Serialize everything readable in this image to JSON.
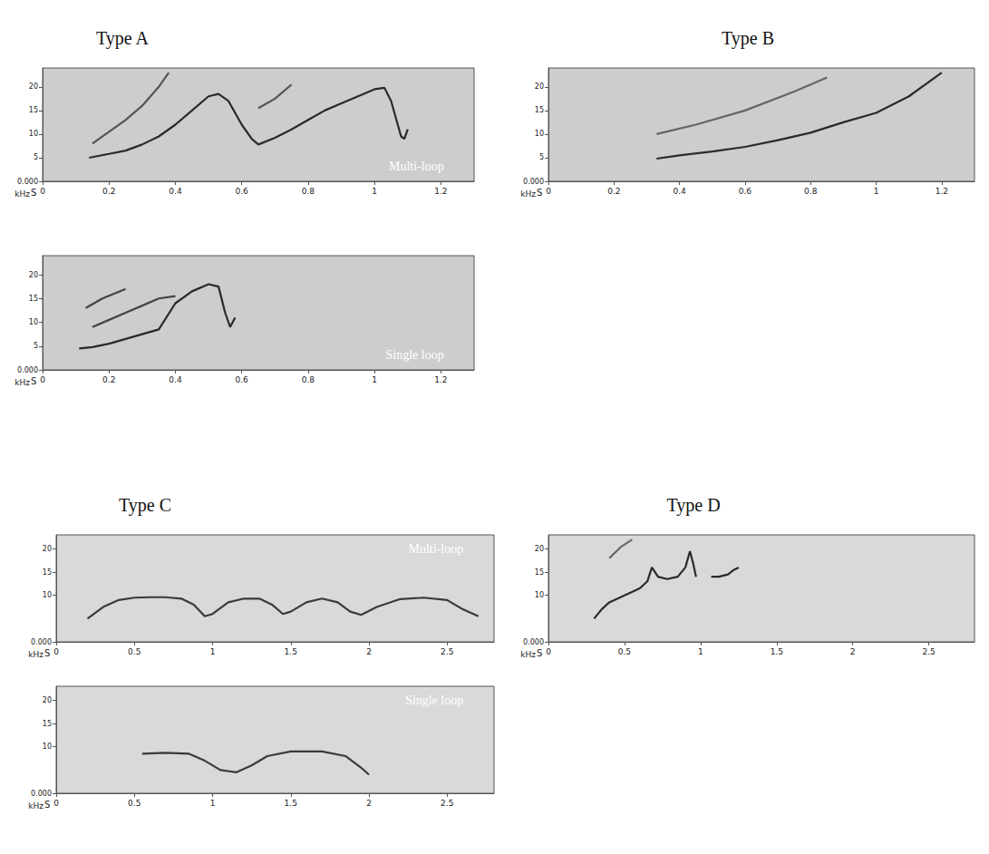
{
  "chart_data": [
    {
      "type": "line",
      "title": "Type A",
      "annotation": "Multi-loop",
      "xlabel": "S",
      "ylabel": "kHz",
      "xlim": [
        0,
        1.3
      ],
      "ylim": [
        0,
        24
      ],
      "xticks": [
        0,
        0.2,
        0.4,
        0.6,
        0.8,
        1,
        1.2
      ],
      "yticks": [
        {
          "value": 0,
          "label": "0.000"
        },
        5,
        10,
        15,
        20
      ],
      "grid": false,
      "series": [
        {
          "color": "#2a2a2a",
          "x": [
            0.14,
            0.2,
            0.25,
            0.3,
            0.35,
            0.4,
            0.45,
            0.5,
            0.53,
            0.56,
            0.6,
            0.63,
            0.65,
            0.7,
            0.75,
            0.8,
            0.85,
            0.9,
            0.95,
            1.0,
            1.03,
            1.05,
            1.07,
            1.08,
            1.09,
            1.1
          ],
          "values": [
            5,
            5.8,
            6.5,
            7.8,
            9.5,
            12,
            15,
            18,
            18.5,
            17,
            12,
            9,
            7.8,
            9.2,
            11,
            13,
            15,
            16.5,
            18,
            19.5,
            19.8,
            17,
            12,
            9.5,
            9,
            11
          ]
        },
        {
          "color": "#555555",
          "x": [
            0.15,
            0.2,
            0.25,
            0.3,
            0.35,
            0.38,
            0.5,
            0.65,
            0.7,
            0.75
          ],
          "values": [
            8,
            10.5,
            13,
            16,
            20,
            23,
            null,
            15.5,
            17.5,
            20.5
          ]
        }
      ]
    },
    {
      "type": "line",
      "annotation": "Single loop",
      "xlabel": "S",
      "ylabel": "kHz",
      "xlim": [
        0,
        1.3
      ],
      "ylim": [
        0,
        24
      ],
      "xticks": [
        0,
        0.2,
        0.4,
        0.6,
        0.8,
        1,
        1.2
      ],
      "yticks": [
        {
          "value": 0,
          "label": "0.000"
        },
        5,
        10,
        15,
        20
      ],
      "grid": false,
      "series": [
        {
          "color": "#2a2a2a",
          "x": [
            0.11,
            0.15,
            0.2,
            0.25,
            0.3,
            0.35,
            0.4,
            0.45,
            0.5,
            0.53,
            0.55,
            0.565,
            0.58
          ],
          "values": [
            4.5,
            4.8,
            5.5,
            6.5,
            7.5,
            8.5,
            14,
            16.5,
            18,
            17.5,
            12,
            9,
            11
          ]
        },
        {
          "color": "#444444",
          "x": [
            0.15,
            0.2,
            0.25,
            0.3,
            0.35,
            0.4,
            0.42,
            0.13,
            0.18,
            0.25
          ],
          "values": [
            9,
            10.5,
            12,
            13.5,
            15,
            15.5,
            null,
            13,
            15,
            17
          ]
        }
      ]
    },
    {
      "type": "line",
      "title": "Type B",
      "xlabel": "S",
      "ylabel": "kHz",
      "xlim": [
        0,
        1.3
      ],
      "ylim": [
        0,
        24
      ],
      "xticks": [
        0,
        0.2,
        0.4,
        0.6,
        0.8,
        1,
        1.2
      ],
      "yticks": [
        {
          "value": 0,
          "label": "0.000"
        },
        5,
        10,
        15,
        20
      ],
      "grid": false,
      "series": [
        {
          "color": "#2a2a2a",
          "x": [
            0.33,
            0.4,
            0.5,
            0.6,
            0.7,
            0.8,
            0.9,
            1.0,
            1.1,
            1.2
          ],
          "values": [
            4.8,
            5.5,
            6.3,
            7.3,
            8.7,
            10.3,
            12.5,
            14.5,
            18,
            23
          ]
        },
        {
          "color": "#666666",
          "x": [
            0.33,
            0.45,
            0.6,
            0.75,
            0.85
          ],
          "values": [
            10,
            12,
            15,
            19,
            22
          ]
        }
      ]
    },
    {
      "type": "line",
      "title": "Type C",
      "annotation": "Multi-loop",
      "xlabel": "S",
      "ylabel": "kHz",
      "xlim": [
        0,
        2.8
      ],
      "ylim": [
        0,
        23
      ],
      "xticks": [
        0,
        0.5,
        1,
        1.5,
        2,
        2.5
      ],
      "yticks": [
        {
          "value": 0,
          "label": "0.000"
        },
        10,
        15,
        20
      ],
      "grid": false,
      "series": [
        {
          "color": "#3a3a3a",
          "x": [
            0.2,
            0.3,
            0.4,
            0.5,
            0.6,
            0.7,
            0.8,
            0.88,
            0.95,
            1.0,
            1.1,
            1.2,
            1.3,
            1.38,
            1.45,
            1.5,
            1.6,
            1.7,
            1.8,
            1.88,
            1.95,
            2.05,
            2.2,
            2.35,
            2.5,
            2.6,
            2.7
          ],
          "values": [
            5,
            7.5,
            9,
            9.5,
            9.6,
            9.6,
            9.3,
            8,
            5.5,
            6,
            8.5,
            9.3,
            9.3,
            8,
            6,
            6.5,
            8.5,
            9.3,
            8.5,
            6.5,
            5.8,
            7.5,
            9.2,
            9.5,
            9,
            7,
            5.5
          ]
        }
      ]
    },
    {
      "type": "line",
      "annotation": "Single loop",
      "xlabel": "S",
      "ylabel": "kHz",
      "xlim": [
        0,
        2.8
      ],
      "ylim": [
        0,
        23
      ],
      "xticks": [
        0,
        0.5,
        1,
        1.5,
        2,
        2.5
      ],
      "yticks": [
        {
          "value": 0,
          "label": "0.000"
        },
        10,
        15,
        20
      ],
      "grid": false,
      "series": [
        {
          "color": "#3a3a3a",
          "x": [
            0.55,
            0.7,
            0.85,
            0.95,
            1.05,
            1.15,
            1.25,
            1.35,
            1.5,
            1.7,
            1.85,
            1.95,
            2.0
          ],
          "values": [
            8.5,
            8.7,
            8.5,
            7,
            5,
            4.5,
            6,
            8,
            9,
            9,
            8,
            5.5,
            4
          ]
        }
      ]
    },
    {
      "type": "line",
      "title": "Type D",
      "xlabel": "S",
      "ylabel": "kHz",
      "xlim": [
        0,
        2.8
      ],
      "ylim": [
        0,
        23
      ],
      "xticks": [
        0,
        0.5,
        1,
        1.5,
        2,
        2.5
      ],
      "yticks": [
        {
          "value": 0,
          "label": "0.000"
        },
        10,
        15,
        20
      ],
      "grid": false,
      "series": [
        {
          "color": "#2a2a2a",
          "x": [
            0.3,
            0.35,
            0.4,
            0.5,
            0.6,
            0.65,
            0.68,
            0.72,
            0.78,
            0.85,
            0.9,
            0.93,
            0.95,
            0.97,
            1.0,
            1.07,
            1.12,
            1.18,
            1.22,
            1.25
          ],
          "values": [
            5,
            7,
            8.5,
            10,
            11.5,
            13,
            16,
            14,
            13.5,
            14,
            16,
            19.5,
            17,
            14,
            null,
            14,
            14,
            14.5,
            15.5,
            16
          ]
        },
        {
          "color": "#666666",
          "x": [
            0.4,
            0.48,
            0.55
          ],
          "values": [
            18,
            20.5,
            22
          ]
        }
      ]
    }
  ]
}
